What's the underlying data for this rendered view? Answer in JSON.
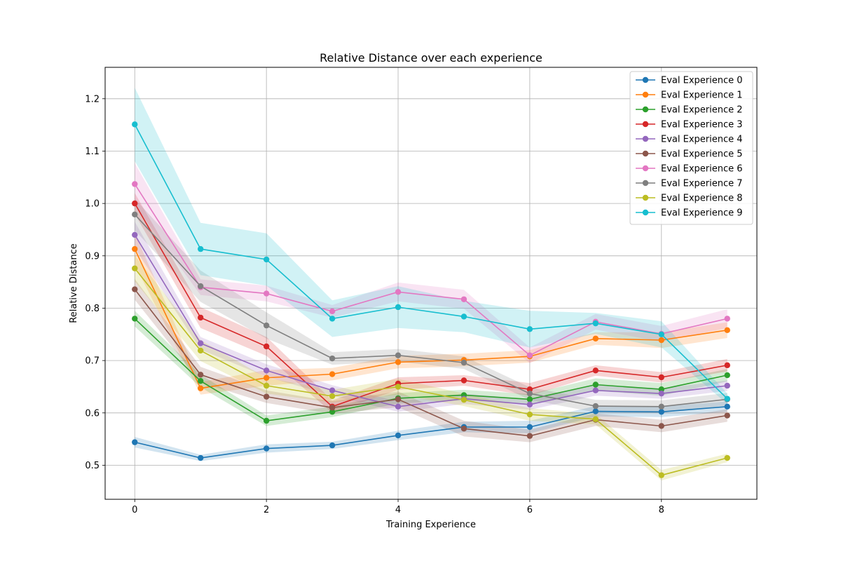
{
  "chart_data": {
    "type": "line",
    "title": "Relative Distance over each experience",
    "xlabel": "Training Experience",
    "ylabel": "Relative Distance",
    "x": [
      0,
      1,
      2,
      3,
      4,
      5,
      6,
      7,
      8,
      9
    ],
    "xlim": [
      -0.45,
      9.45
    ],
    "ylim": [
      0.435,
      1.26
    ],
    "xticks": [
      0,
      2,
      4,
      6,
      8
    ],
    "yticks": [
      0.5,
      0.6,
      0.7,
      0.8,
      0.9,
      1.0,
      1.1,
      1.2
    ],
    "grid": true,
    "legend_position": "top-right",
    "series": [
      {
        "name": "Eval Experience 0",
        "color": "#1f77b4",
        "values": [
          0.544,
          0.514,
          0.532,
          0.538,
          0.557,
          0.573,
          0.573,
          0.603,
          0.602,
          0.612
        ],
        "band": [
          0.01,
          0.006,
          0.008,
          0.007,
          0.009,
          0.01,
          0.012,
          0.01,
          0.01,
          0.01
        ]
      },
      {
        "name": "Eval Experience 1",
        "color": "#ff7f0e",
        "values": [
          0.913,
          0.647,
          0.667,
          0.674,
          0.697,
          0.701,
          0.708,
          0.742,
          0.739,
          0.758
        ],
        "band": [
          0.03,
          0.012,
          0.015,
          0.012,
          0.012,
          0.012,
          0.012,
          0.012,
          0.015,
          0.015
        ]
      },
      {
        "name": "Eval Experience 2",
        "color": "#2ca02c",
        "values": [
          0.78,
          0.661,
          0.585,
          0.602,
          0.628,
          0.634,
          0.626,
          0.654,
          0.645,
          0.672
        ],
        "band": [
          0.015,
          0.012,
          0.01,
          0.01,
          0.01,
          0.01,
          0.01,
          0.012,
          0.012,
          0.012
        ]
      },
      {
        "name": "Eval Experience 3",
        "color": "#d62728",
        "values": [
          1.0,
          0.782,
          0.727,
          0.612,
          0.656,
          0.662,
          0.645,
          0.681,
          0.668,
          0.691
        ],
        "band": [
          0.02,
          0.02,
          0.018,
          0.012,
          0.012,
          0.01,
          0.012,
          0.01,
          0.01,
          0.012
        ]
      },
      {
        "name": "Eval Experience 4",
        "color": "#9467bd",
        "values": [
          0.94,
          0.733,
          0.681,
          0.643,
          0.612,
          0.627,
          0.616,
          0.643,
          0.637,
          0.652
        ],
        "band": [
          0.025,
          0.012,
          0.012,
          0.01,
          0.01,
          0.01,
          0.01,
          0.01,
          0.01,
          0.01
        ]
      },
      {
        "name": "Eval Experience 5",
        "color": "#8c564b",
        "values": [
          0.836,
          0.673,
          0.631,
          0.61,
          0.626,
          0.57,
          0.556,
          0.587,
          0.575,
          0.595
        ],
        "band": [
          0.02,
          0.015,
          0.012,
          0.012,
          0.015,
          0.015,
          0.012,
          0.012,
          0.012,
          0.012
        ]
      },
      {
        "name": "Eval Experience 6",
        "color": "#e377c2",
        "values": [
          1.037,
          0.84,
          0.828,
          0.794,
          0.831,
          0.817,
          0.71,
          0.774,
          0.751,
          0.78
        ],
        "band": [
          0.04,
          0.015,
          0.015,
          0.012,
          0.018,
          0.018,
          0.015,
          0.015,
          0.015,
          0.018
        ]
      },
      {
        "name": "Eval Experience 7",
        "color": "#7f7f7f",
        "values": [
          0.979,
          0.842,
          0.767,
          0.704,
          0.71,
          0.696,
          0.637,
          0.613,
          0.612,
          0.626
        ],
        "band": [
          0.03,
          0.03,
          0.025,
          0.012,
          0.012,
          0.012,
          0.012,
          0.012,
          0.012,
          0.012
        ]
      },
      {
        "name": "Eval Experience 8",
        "color": "#bcbd22",
        "values": [
          0.876,
          0.719,
          0.652,
          0.632,
          0.65,
          0.625,
          0.597,
          0.588,
          0.481,
          0.514
        ],
        "band": [
          0.025,
          0.02,
          0.015,
          0.012,
          0.015,
          0.012,
          0.012,
          0.01,
          0.01,
          0.008
        ]
      },
      {
        "name": "Eval Experience 9",
        "color": "#17becf",
        "values": [
          1.151,
          0.913,
          0.893,
          0.78,
          0.802,
          0.784,
          0.76,
          0.771,
          0.75,
          0.627
        ],
        "band": [
          0.07,
          0.05,
          0.05,
          0.035,
          0.04,
          0.03,
          0.035,
          0.02,
          0.025,
          0.01
        ]
      }
    ]
  }
}
